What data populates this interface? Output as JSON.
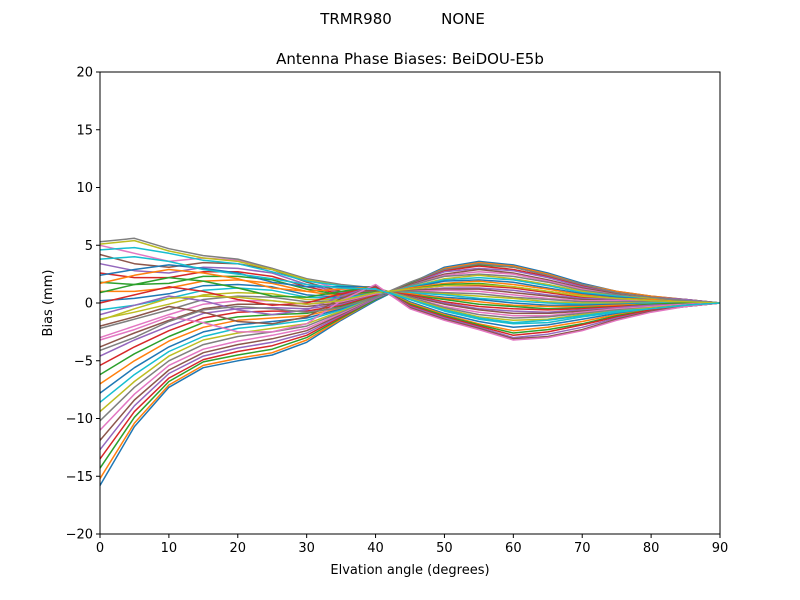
{
  "figure": {
    "antenna": "TRMR980",
    "radome": "NONE"
  },
  "chart_data": {
    "type": "line",
    "title": "Antenna Phase Biases: BeiDOU-E5b",
    "xlabel": "Elvation angle (degrees)",
    "ylabel": "Bias (mm)",
    "xlim": [
      0,
      90
    ],
    "ylim": [
      -20,
      20
    ],
    "xticks": [
      "0",
      "10",
      "20",
      "30",
      "40",
      "50",
      "60",
      "70",
      "80",
      "90"
    ],
    "yticks": [
      "−20",
      "−15",
      "−10",
      "−5",
      "0",
      "5",
      "10",
      "15",
      "20"
    ],
    "grid": false,
    "legend": "none",
    "x": [
      0,
      5,
      10,
      15,
      20,
      25,
      30,
      35,
      40,
      45,
      50,
      55,
      60,
      65,
      70,
      75,
      80,
      85,
      90
    ],
    "colors": [
      "#1f77b4",
      "#ff7f0e",
      "#2ca02c",
      "#d62728",
      "#9467bd",
      "#8c564b",
      "#e377c2",
      "#7f7f7f",
      "#bcbd22",
      "#17becf"
    ],
    "series": [
      {
        "values": [
          -15.8,
          -10.7,
          -7.3,
          -5.6,
          -5.0,
          -4.5,
          -3.4,
          -1.5,
          0.2,
          1.7,
          3.1,
          3.6,
          3.3,
          2.6,
          1.7,
          1.0,
          0.6,
          0.3,
          0.0
        ]
      },
      {
        "values": [
          -15.2,
          -10.4,
          -7.1,
          -5.4,
          -4.8,
          -4.3,
          -3.2,
          -1.4,
          0.3,
          1.7,
          3.0,
          3.5,
          3.2,
          2.5,
          1.6,
          1.0,
          0.6,
          0.3,
          0.0
        ]
      },
      {
        "values": [
          -14.3,
          -9.9,
          -6.8,
          -5.1,
          -4.5,
          -4.0,
          -3.0,
          -1.3,
          0.3,
          1.7,
          2.9,
          3.3,
          3.1,
          2.4,
          1.5,
          0.9,
          0.5,
          0.3,
          0.0
        ]
      },
      {
        "values": [
          -13.5,
          -9.4,
          -6.5,
          -4.9,
          -4.2,
          -3.7,
          -2.8,
          -1.2,
          0.4,
          1.6,
          2.8,
          3.2,
          2.9,
          2.3,
          1.5,
          0.9,
          0.5,
          0.3,
          0.0
        ]
      },
      {
        "values": [
          -12.7,
          -8.9,
          -6.1,
          -4.6,
          -3.9,
          -3.4,
          -2.6,
          -1.1,
          0.4,
          1.6,
          2.7,
          3.0,
          2.8,
          2.2,
          1.4,
          0.8,
          0.5,
          0.3,
          0.0
        ]
      },
      {
        "values": [
          -11.9,
          -8.4,
          -5.8,
          -4.3,
          -3.6,
          -3.1,
          -2.4,
          -1.0,
          0.5,
          1.6,
          2.5,
          2.9,
          2.6,
          2.0,
          1.3,
          0.8,
          0.5,
          0.2,
          0.0
        ]
      },
      {
        "values": [
          -11.0,
          -7.9,
          -5.4,
          -4.0,
          -3.3,
          -2.8,
          -2.2,
          -0.9,
          0.5,
          1.5,
          2.4,
          2.7,
          2.5,
          1.9,
          1.2,
          0.7,
          0.4,
          0.2,
          0.0
        ]
      },
      {
        "values": [
          -10.2,
          -7.3,
          -5.0,
          -3.6,
          -2.9,
          -2.5,
          -2.0,
          -0.8,
          0.5,
          1.5,
          2.3,
          2.5,
          2.3,
          1.8,
          1.1,
          0.7,
          0.4,
          0.2,
          0.0
        ]
      },
      {
        "values": [
          -9.4,
          -6.8,
          -4.6,
          -3.2,
          -2.6,
          -2.2,
          -1.8,
          -0.7,
          0.6,
          1.4,
          2.1,
          2.4,
          2.1,
          1.6,
          1.0,
          0.6,
          0.4,
          0.2,
          0.0
        ]
      },
      {
        "values": [
          -8.6,
          -6.2,
          -4.2,
          -2.9,
          -2.2,
          -1.9,
          -1.5,
          -0.6,
          0.6,
          1.4,
          2.0,
          2.2,
          2.0,
          1.5,
          0.9,
          0.6,
          0.3,
          0.2,
          0.0
        ]
      },
      {
        "values": [
          -7.8,
          -5.6,
          -3.8,
          -2.5,
          -1.9,
          -1.6,
          -1.3,
          -0.5,
          0.6,
          1.3,
          1.9,
          2.0,
          1.8,
          1.3,
          0.8,
          0.5,
          0.3,
          0.1,
          0.0
        ]
      },
      {
        "values": [
          -7.0,
          -5.0,
          -3.3,
          -2.1,
          -1.5,
          -1.3,
          -1.1,
          -0.4,
          0.7,
          1.3,
          1.7,
          1.9,
          1.6,
          1.2,
          0.7,
          0.4,
          0.3,
          0.1,
          0.0
        ]
      },
      {
        "values": [
          -6.2,
          -4.4,
          -2.9,
          -1.7,
          -1.2,
          -1.0,
          -0.9,
          -0.3,
          0.7,
          1.2,
          1.6,
          1.7,
          1.4,
          1.0,
          0.6,
          0.4,
          0.2,
          0.1,
          0.0
        ]
      },
      {
        "values": [
          -5.4,
          -3.8,
          -2.4,
          -1.3,
          -0.8,
          -0.7,
          -0.7,
          -0.2,
          0.7,
          1.2,
          1.5,
          1.5,
          1.3,
          0.9,
          0.5,
          0.3,
          0.2,
          0.1,
          0.0
        ]
      },
      {
        "values": [
          -4.6,
          -3.2,
          -2.0,
          -0.9,
          -0.5,
          -0.4,
          -0.5,
          -0.1,
          0.8,
          1.1,
          1.3,
          1.3,
          1.1,
          0.7,
          0.4,
          0.3,
          0.2,
          0.1,
          0.0
        ]
      },
      {
        "values": [
          -3.8,
          -2.6,
          -1.5,
          -0.5,
          -0.1,
          -0.1,
          -0.3,
          0.0,
          0.8,
          1.1,
          1.2,
          1.2,
          0.9,
          0.6,
          0.3,
          0.2,
          0.1,
          0.1,
          0.0
        ]
      },
      {
        "values": [
          -3.0,
          -2.0,
          -1.0,
          -0.1,
          0.2,
          0.2,
          -0.1,
          0.1,
          0.8,
          1.0,
          1.1,
          1.0,
          0.7,
          0.4,
          0.2,
          0.2,
          0.1,
          0.0,
          0.0
        ]
      },
      {
        "values": [
          -2.2,
          -1.4,
          -0.6,
          0.3,
          0.6,
          0.5,
          0.1,
          0.2,
          0.9,
          1.0,
          0.9,
          0.8,
          0.5,
          0.3,
          0.1,
          0.1,
          0.1,
          0.0,
          0.0
        ]
      },
      {
        "values": [
          -1.4,
          -0.8,
          -0.1,
          0.7,
          0.9,
          0.8,
          0.3,
          0.3,
          0.9,
          0.9,
          0.8,
          0.6,
          0.4,
          0.1,
          0.0,
          0.0,
          0.0,
          0.0,
          0.0
        ]
      },
      {
        "values": [
          -0.6,
          -0.2,
          0.4,
          1.1,
          1.3,
          1.1,
          0.5,
          0.4,
          0.9,
          0.9,
          0.7,
          0.4,
          0.2,
          0.0,
          -0.1,
          -0.1,
          0.0,
          0.0,
          0.0
        ]
      },
      {
        "values": [
          0.2,
          0.4,
          0.8,
          1.5,
          1.6,
          1.4,
          0.7,
          0.5,
          1.0,
          0.8,
          0.5,
          0.3,
          0.0,
          -0.2,
          -0.2,
          -0.1,
          -0.1,
          0.0,
          0.0
        ]
      },
      {
        "values": [
          1.0,
          1.0,
          1.3,
          1.9,
          2.0,
          1.7,
          1.0,
          0.6,
          1.0,
          0.8,
          0.4,
          0.1,
          -0.2,
          -0.3,
          -0.3,
          -0.2,
          -0.1,
          0.0,
          0.0
        ]
      },
      {
        "values": [
          1.8,
          1.6,
          1.7,
          2.3,
          2.3,
          2.0,
          1.2,
          0.7,
          1.0,
          0.7,
          0.3,
          -0.1,
          -0.3,
          -0.5,
          -0.4,
          -0.3,
          -0.1,
          0.0,
          0.0
        ]
      },
      {
        "values": [
          2.6,
          2.2,
          2.2,
          2.7,
          2.7,
          2.3,
          1.4,
          0.8,
          1.1,
          0.7,
          0.1,
          -0.3,
          -0.5,
          -0.6,
          -0.5,
          -0.3,
          -0.2,
          -0.1,
          0.0
        ]
      },
      {
        "values": [
          3.4,
          2.8,
          2.6,
          3.1,
          3.0,
          2.6,
          1.6,
          0.9,
          1.1,
          0.6,
          0.0,
          -0.5,
          -0.7,
          -0.8,
          -0.6,
          -0.4,
          -0.2,
          -0.1,
          0.0
        ]
      },
      {
        "values": [
          4.2,
          3.4,
          3.1,
          3.5,
          3.4,
          2.9,
          1.8,
          1.0,
          1.1,
          0.6,
          -0.1,
          -0.6,
          -0.9,
          -0.9,
          -0.7,
          -0.5,
          -0.3,
          -0.1,
          0.0
        ]
      },
      {
        "values": [
          5.0,
          4.3,
          3.6,
          3.9,
          3.7,
          3.0,
          2.0,
          1.2,
          1.2,
          0.5,
          -0.3,
          -0.8,
          -1.1,
          -1.1,
          -0.8,
          -0.5,
          -0.3,
          -0.1,
          0.0
        ]
      },
      {
        "values": [
          5.3,
          5.6,
          4.7,
          4.1,
          3.8,
          3.0,
          2.1,
          1.6,
          1.3,
          0.5,
          -0.4,
          -1.0,
          -1.3,
          -1.2,
          -0.9,
          -0.6,
          -0.4,
          -0.2,
          0.0
        ]
      },
      {
        "values": [
          5.1,
          5.4,
          4.5,
          3.9,
          3.6,
          2.9,
          2.0,
          1.5,
          1.3,
          0.4,
          -0.5,
          -1.2,
          -1.5,
          -1.4,
          -1.0,
          -0.7,
          -0.4,
          -0.2,
          0.0
        ]
      },
      {
        "values": [
          4.6,
          4.8,
          4.3,
          3.7,
          3.4,
          2.7,
          1.9,
          1.5,
          1.3,
          0.3,
          -0.6,
          -1.3,
          -1.7,
          -1.5,
          -1.1,
          -0.7,
          -0.5,
          -0.2,
          0.0
        ]
      },
      {
        "values": [
          2.4,
          2.9,
          3.3,
          3.0,
          2.6,
          1.8,
          1.4,
          1.4,
          1.4,
          0.1,
          -0.9,
          -1.6,
          -2.1,
          -1.9,
          -1.4,
          -0.9,
          -0.5,
          -0.2,
          0.0
        ]
      },
      {
        "values": [
          1.7,
          2.4,
          2.9,
          2.6,
          2.1,
          1.3,
          1.0,
          1.2,
          1.4,
          0.0,
          -1.0,
          -1.8,
          -2.4,
          -2.1,
          -1.6,
          -1.0,
          -0.6,
          -0.3,
          0.0
        ]
      },
      {
        "values": [
          0.9,
          1.6,
          2.2,
          1.9,
          1.3,
          0.6,
          0.5,
          1.0,
          1.4,
          -0.1,
          -1.1,
          -1.9,
          -2.6,
          -2.3,
          -1.8,
          -1.1,
          -0.6,
          -0.3,
          0.0
        ]
      },
      {
        "values": [
          0.0,
          0.7,
          1.4,
          1.0,
          0.3,
          -0.2,
          0.0,
          0.8,
          1.4,
          -0.2,
          -1.2,
          -2.0,
          -2.8,
          -2.5,
          -1.9,
          -1.2,
          -0.6,
          -0.3,
          0.0
        ]
      },
      {
        "values": [
          -1.0,
          -0.2,
          0.6,
          0.2,
          -0.6,
          -1.0,
          -0.6,
          0.6,
          1.5,
          -0.3,
          -1.3,
          -2.1,
          -3.0,
          -2.7,
          -2.1,
          -1.3,
          -0.7,
          -0.3,
          0.0
        ]
      },
      {
        "values": [
          -2.0,
          -1.2,
          -0.3,
          -0.8,
          -1.6,
          -1.8,
          -1.2,
          0.4,
          1.5,
          -0.4,
          -1.4,
          -2.2,
          -3.1,
          -2.9,
          -2.3,
          -1.4,
          -0.7,
          -0.3,
          0.0
        ]
      },
      {
        "values": [
          -3.2,
          -2.3,
          -1.2,
          -1.7,
          -2.5,
          -2.5,
          -1.8,
          0.2,
          1.6,
          -0.5,
          -1.5,
          -2.3,
          -3.2,
          -3.0,
          -2.4,
          -1.5,
          -0.8,
          -0.3,
          0.0
        ]
      },
      {
        "values": [
          -4.1,
          -3.0,
          -1.6,
          -0.6,
          -0.3,
          -0.5,
          -0.8,
          -0.4,
          0.5,
          1.8,
          2.9,
          3.4,
          3.1,
          2.4,
          1.6,
          0.9,
          0.5,
          0.2,
          0.0
        ]
      },
      {
        "values": [
          -1.5,
          -0.5,
          0.4,
          0.6,
          0.5,
          0.2,
          -0.1,
          0.2,
          0.9,
          1.2,
          1.5,
          1.6,
          1.4,
          1.0,
          0.6,
          0.4,
          0.2,
          0.1,
          0.0
        ]
      },
      {
        "values": [
          3.8,
          4.0,
          3.6,
          2.9,
          2.5,
          2.1,
          1.6,
          1.3,
          1.2,
          0.3,
          -0.7,
          -1.4,
          -1.8,
          -1.7,
          -1.2,
          -0.8,
          -0.5,
          -0.2,
          0.0
        ]
      }
    ]
  }
}
